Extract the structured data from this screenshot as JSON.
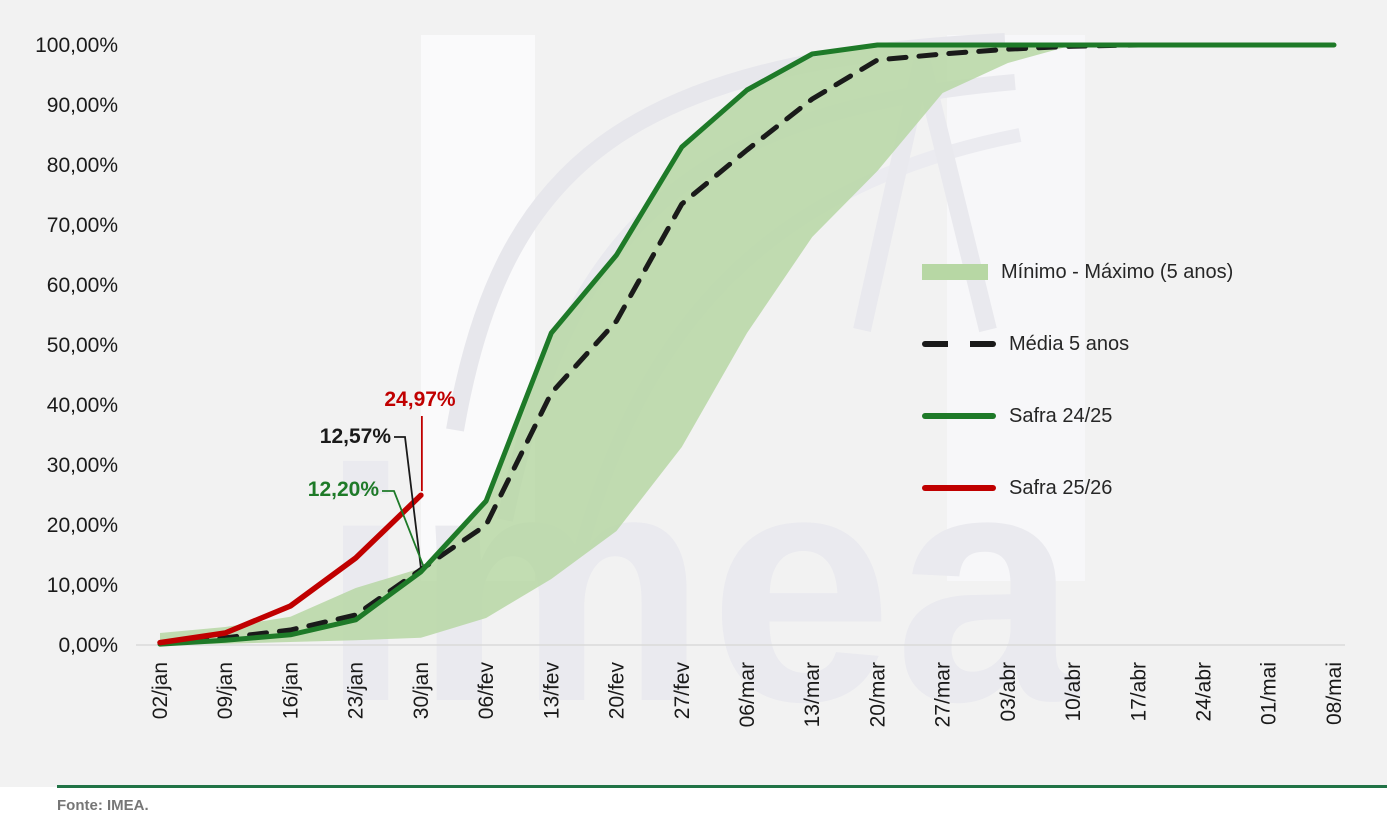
{
  "page": {
    "background": "#f2f2f2",
    "watermark_text": "imea",
    "footer": {
      "source_text": "Fonte: IMEA.",
      "rule_color": "#217346",
      "text_color": "#767676"
    }
  },
  "legend": {
    "position": "right",
    "items": [
      {
        "label": "Mínimo - Máximo (5 anos)",
        "swatch": "band",
        "color": "#b7d7a4"
      },
      {
        "label": "Média 5 anos",
        "swatch": "dashed-line",
        "color": "#1a1a1a"
      },
      {
        "label": "Safra 24/25",
        "swatch": "solid-line",
        "color": "#1e7a28"
      },
      {
        "label": "Safra 25/26",
        "swatch": "solid-line",
        "color": "#c00000"
      }
    ]
  },
  "chart_data": {
    "type": "line",
    "title": "",
    "xlabel": "",
    "ylabel": "",
    "grid": false,
    "legend_position": "right",
    "y_axis": {
      "min": 0,
      "max": 100,
      "step": 10,
      "unit": "%",
      "decimal_style": "comma"
    },
    "y_tick_labels": [
      "100,00%",
      "90,00%",
      "80,00%",
      "70,00%",
      "60,00%",
      "50,00%",
      "40,00%",
      "30,00%",
      "20,00%",
      "10,00%",
      "0,00%"
    ],
    "x_tick_labels": [
      "02/jan",
      "09/jan",
      "16/jan",
      "23/jan",
      "30/jan",
      "06/fev",
      "13/fev",
      "20/fev",
      "27/fev",
      "06/mar",
      "13/mar",
      "20/mar",
      "27/mar",
      "03/abr",
      "10/abr",
      "17/abr",
      "24/abr",
      "01/mai",
      "08/mai"
    ],
    "series": [
      {
        "name": "Mínimo - Máximo (5 anos)",
        "type": "band",
        "color": "#b7d7a4",
        "min_values": [
          0,
          0.2,
          0.5,
          0.8,
          1.2,
          4.5,
          11,
          19,
          33,
          52,
          68,
          79,
          92,
          97,
          100,
          100,
          100,
          100,
          100
        ],
        "max_values": [
          2,
          3,
          4.7,
          9.5,
          12.8,
          24.5,
          51.5,
          64.5,
          83.5,
          92,
          98,
          100,
          100,
          100,
          100,
          100,
          100,
          100,
          100
        ]
      },
      {
        "name": "Média 5 anos",
        "type": "line",
        "style": "dashed",
        "color": "#1a1a1a",
        "values": [
          0.3,
          1.2,
          2.5,
          5,
          12.57,
          20,
          42,
          54,
          73.5,
          82.5,
          91,
          97.5,
          98.5,
          99.3,
          99.8,
          100,
          100,
          100,
          100
        ]
      },
      {
        "name": "Safra 24/25",
        "type": "line",
        "style": "solid",
        "color": "#1e7a28",
        "values": [
          0.15,
          0.8,
          1.7,
          4.2,
          12.2,
          24,
          52,
          65,
          83,
          92.5,
          98.5,
          100,
          100,
          100,
          100,
          100,
          100,
          100,
          100
        ]
      },
      {
        "name": "Safra 25/26",
        "type": "line",
        "style": "solid",
        "color": "#c00000",
        "values": [
          0.4,
          2,
          6.5,
          14.5,
          24.97
        ]
      }
    ],
    "annotations": [
      {
        "text": "24,97%",
        "series": "Safra 25/26",
        "x_label": "30/jan",
        "value": 24.97,
        "color": "#c00000"
      },
      {
        "text": "12,57%",
        "series": "Média 5 anos",
        "x_label": "30/jan",
        "value": 12.57,
        "color": "#1a1a1a"
      },
      {
        "text": "12,20%",
        "series": "Safra 24/25",
        "x_label": "30/jan",
        "value": 12.2,
        "color": "#1e7a28"
      }
    ]
  }
}
